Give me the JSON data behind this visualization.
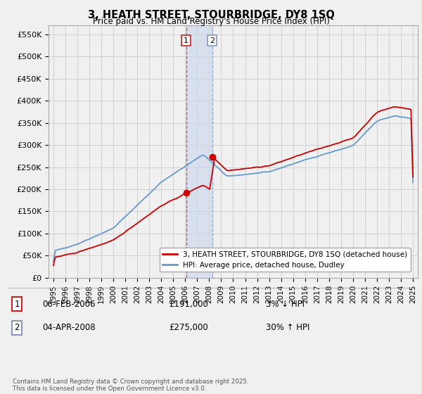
{
  "title": "3, HEATH STREET, STOURBRIDGE, DY8 1SQ",
  "subtitle": "Price paid vs. HM Land Registry's House Price Index (HPI)",
  "ylabel_ticks": [
    "£0",
    "£50K",
    "£100K",
    "£150K",
    "£200K",
    "£250K",
    "£300K",
    "£350K",
    "£400K",
    "£450K",
    "£500K",
    "£550K"
  ],
  "ytick_values": [
    0,
    50000,
    100000,
    150000,
    200000,
    250000,
    300000,
    350000,
    400000,
    450000,
    500000,
    550000
  ],
  "ylim": [
    0,
    570000
  ],
  "hpi_color": "#6699cc",
  "price_color": "#cc0000",
  "grid_color": "#cccccc",
  "bg_color": "#f0f0f0",
  "transaction1": {
    "label": "1",
    "date": "06-FEB-2006",
    "price": 191000,
    "pct": "3%",
    "dir": "↓"
  },
  "transaction2": {
    "label": "2",
    "date": "04-APR-2008",
    "price": 275000,
    "pct": "30%",
    "dir": "↑"
  },
  "legend_line1": "3, HEATH STREET, STOURBRIDGE, DY8 1SQ (detached house)",
  "legend_line2": "HPI: Average price, detached house, Dudley",
  "footnote": "Contains HM Land Registry data © Crown copyright and database right 2025.\nThis data is licensed under the Open Government Licence v3.0.",
  "xlabel_years": [
    "1995",
    "1996",
    "1997",
    "1998",
    "1999",
    "2000",
    "2001",
    "2002",
    "2003",
    "2004",
    "2005",
    "2006",
    "2007",
    "2008",
    "2009",
    "2010",
    "2011",
    "2012",
    "2013",
    "2014",
    "2015",
    "2016",
    "2017",
    "2018",
    "2019",
    "2020",
    "2021",
    "2022",
    "2023",
    "2024",
    "2025"
  ]
}
